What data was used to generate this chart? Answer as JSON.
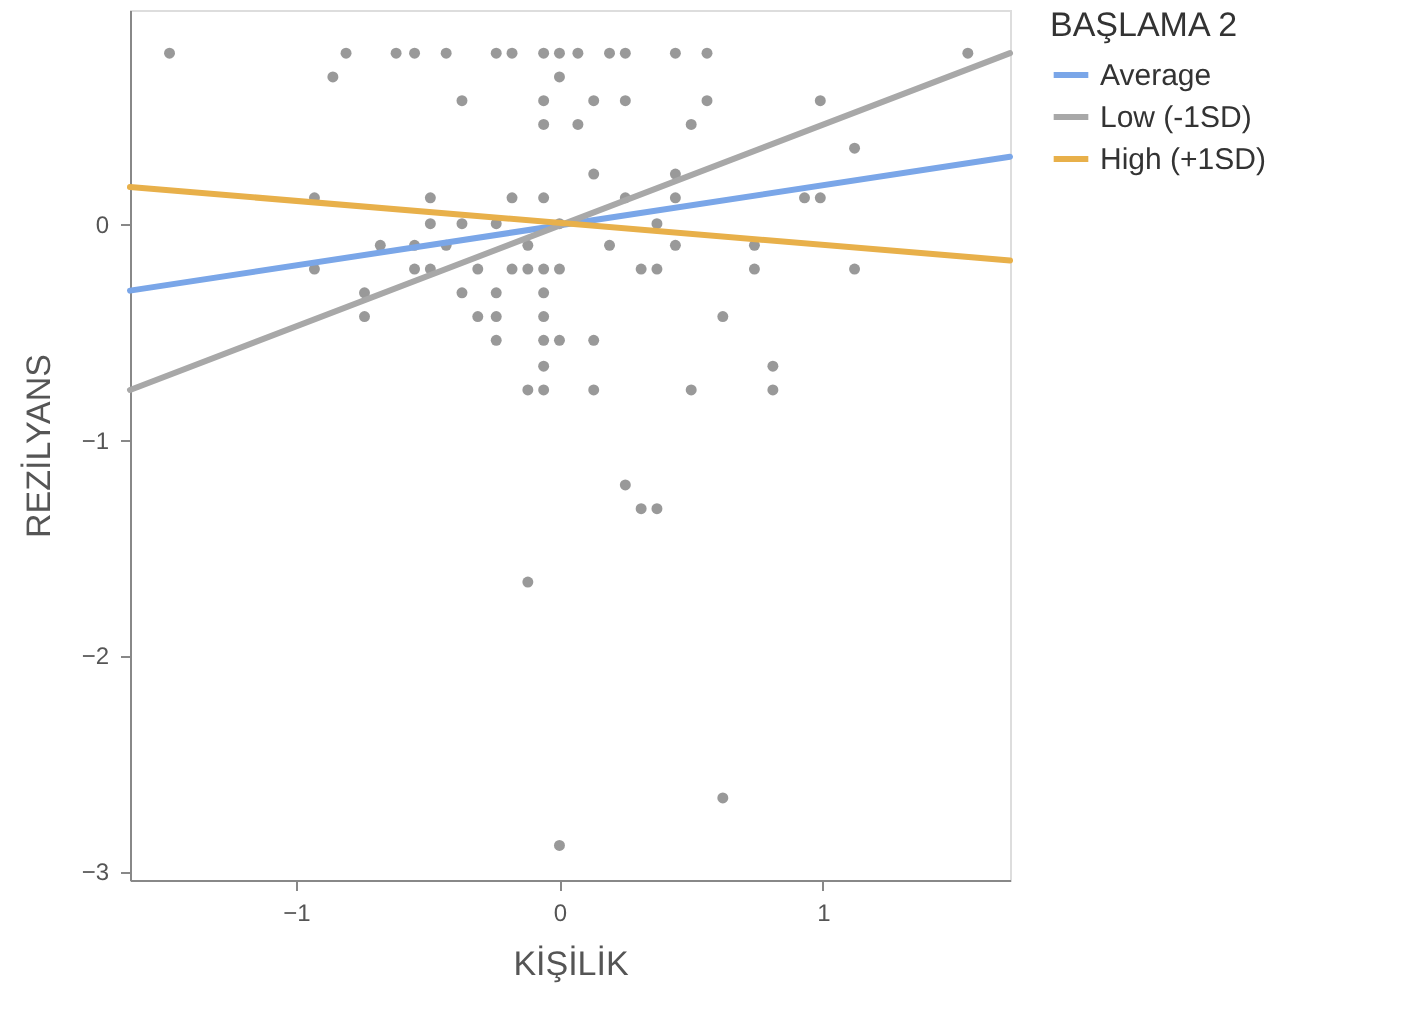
{
  "chart_data": {
    "type": "scatter",
    "xlabel": "KİŞİLİK",
    "ylabel": "REZİLYANS",
    "legend_title": "BAŞLAMA 2",
    "xlim": [
      -1.63,
      1.71
    ],
    "ylim": [
      -3.04,
      0.99
    ],
    "xticks": [
      -1,
      0,
      1
    ],
    "yticks": [
      -3,
      -2,
      -1,
      0
    ],
    "grid": false,
    "legend": "right",
    "series": [
      {
        "marker": "circle",
        "color": "#7f7f7f",
        "x": [
          -1.48,
          -0.81,
          -0.62,
          -0.55,
          -0.43,
          -0.24,
          -0.18,
          -0.06,
          0,
          0.07,
          0.19,
          0.25,
          0.44,
          0.56,
          1.55,
          -0.86,
          0,
          -0.37,
          -0.06,
          0.13,
          0.25,
          0.56,
          0.99,
          -0.06,
          0.07,
          0.5,
          1.12,
          0.13,
          0.44,
          -0.93,
          -0.49,
          -0.18,
          -0.06,
          0.25,
          0.44,
          0.93,
          0.99,
          -0.49,
          -0.37,
          -0.24,
          0,
          0.37,
          -0.68,
          -0.55,
          -0.43,
          -0.12,
          0.19,
          0.44,
          0.74,
          -0.93,
          -0.55,
          -0.49,
          -0.31,
          -0.18,
          -0.12,
          -0.06,
          0,
          0.31,
          0.37,
          0.74,
          1.12,
          -0.74,
          -0.37,
          -0.24,
          -0.06,
          -0.74,
          -0.31,
          -0.24,
          -0.06,
          0.62,
          -0.24,
          -0.06,
          0,
          0.13,
          -0.06,
          0.81,
          -0.12,
          -0.06,
          0.13,
          0.5,
          0.81,
          0.25,
          0.31,
          0.37,
          -0.12,
          0.62,
          0
        ],
        "values": [
          0.79,
          0.79,
          0.79,
          0.79,
          0.79,
          0.79,
          0.79,
          0.79,
          0.79,
          0.79,
          0.79,
          0.79,
          0.79,
          0.79,
          0.79,
          0.68,
          0.68,
          0.57,
          0.57,
          0.57,
          0.57,
          0.57,
          0.57,
          0.46,
          0.46,
          0.46,
          0.35,
          0.23,
          0.23,
          0.12,
          0.12,
          0.12,
          0.12,
          0.12,
          0.12,
          0.12,
          0.12,
          0,
          0,
          0,
          0,
          0,
          -0.1,
          -0.1,
          -0.1,
          -0.1,
          -0.1,
          -0.1,
          -0.1,
          -0.21,
          -0.21,
          -0.21,
          -0.21,
          -0.21,
          -0.21,
          -0.21,
          -0.21,
          -0.21,
          -0.21,
          -0.21,
          -0.21,
          -0.32,
          -0.32,
          -0.32,
          -0.32,
          -0.43,
          -0.43,
          -0.43,
          -0.43,
          -0.43,
          -0.54,
          -0.54,
          -0.54,
          -0.54,
          -0.66,
          -0.66,
          -0.77,
          -0.77,
          -0.77,
          -0.77,
          -0.77,
          -1.21,
          -1.32,
          -1.32,
          -1.66,
          -2.66,
          -2.88
        ]
      },
      {
        "type": "line",
        "marker": "none",
        "name": "Average",
        "color": "#7aa6e8",
        "x": [
          -1.63,
          1.71
        ],
        "values": [
          -0.31,
          0.31
        ]
      },
      {
        "type": "line",
        "marker": "none",
        "name": "Low (-1SD)",
        "color": "#a8a8a8",
        "x": [
          -1.63,
          1.71
        ],
        "values": [
          -0.77,
          0.79
        ]
      },
      {
        "type": "line",
        "marker": "none",
        "name": "High (+1SD)",
        "color": "#e8b04a",
        "x": [
          -1.63,
          1.71
        ],
        "values": [
          0.17,
          -0.17
        ]
      }
    ]
  }
}
